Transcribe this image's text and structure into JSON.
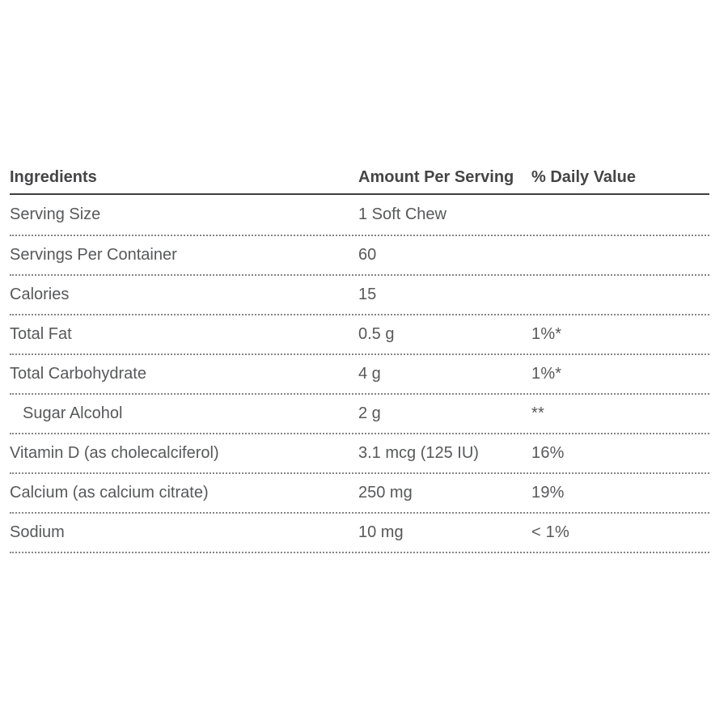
{
  "table": {
    "columns": {
      "ingredients": "Ingredients",
      "amount": "Amount Per Serving",
      "daily_value": "% Daily Value"
    },
    "rows": [
      {
        "ingredient": "Serving Size",
        "amount": "1 Soft Chew",
        "daily_value": ""
      },
      {
        "ingredient": "Servings Per Container",
        "amount": "60",
        "daily_value": ""
      },
      {
        "ingredient": "Calories",
        "amount": "15",
        "daily_value": ""
      },
      {
        "ingredient": "Total Fat",
        "amount": "0.5 g",
        "daily_value": "1%*"
      },
      {
        "ingredient": "Total Carbohydrate",
        "amount": "4 g",
        "daily_value": "1%*"
      },
      {
        "ingredient": "Sugar Alcohol",
        "amount": "2 g",
        "daily_value": "**"
      },
      {
        "ingredient": "Vitamin D (as cholecalciferol)",
        "amount": "3.1 mcg (125 IU)",
        "daily_value": "16%"
      },
      {
        "ingredient": "Calcium (as calcium citrate)",
        "amount": "250 mg",
        "daily_value": "19%"
      },
      {
        "ingredient": "Sodium",
        "amount": "10 mg",
        "daily_value": "< 1%"
      }
    ],
    "colors": {
      "background": "#ffffff",
      "header_text": "#454547",
      "body_text": "#57585a",
      "header_rule": "#3e3e3e",
      "row_rule_dotted": "#858585"
    }
  }
}
